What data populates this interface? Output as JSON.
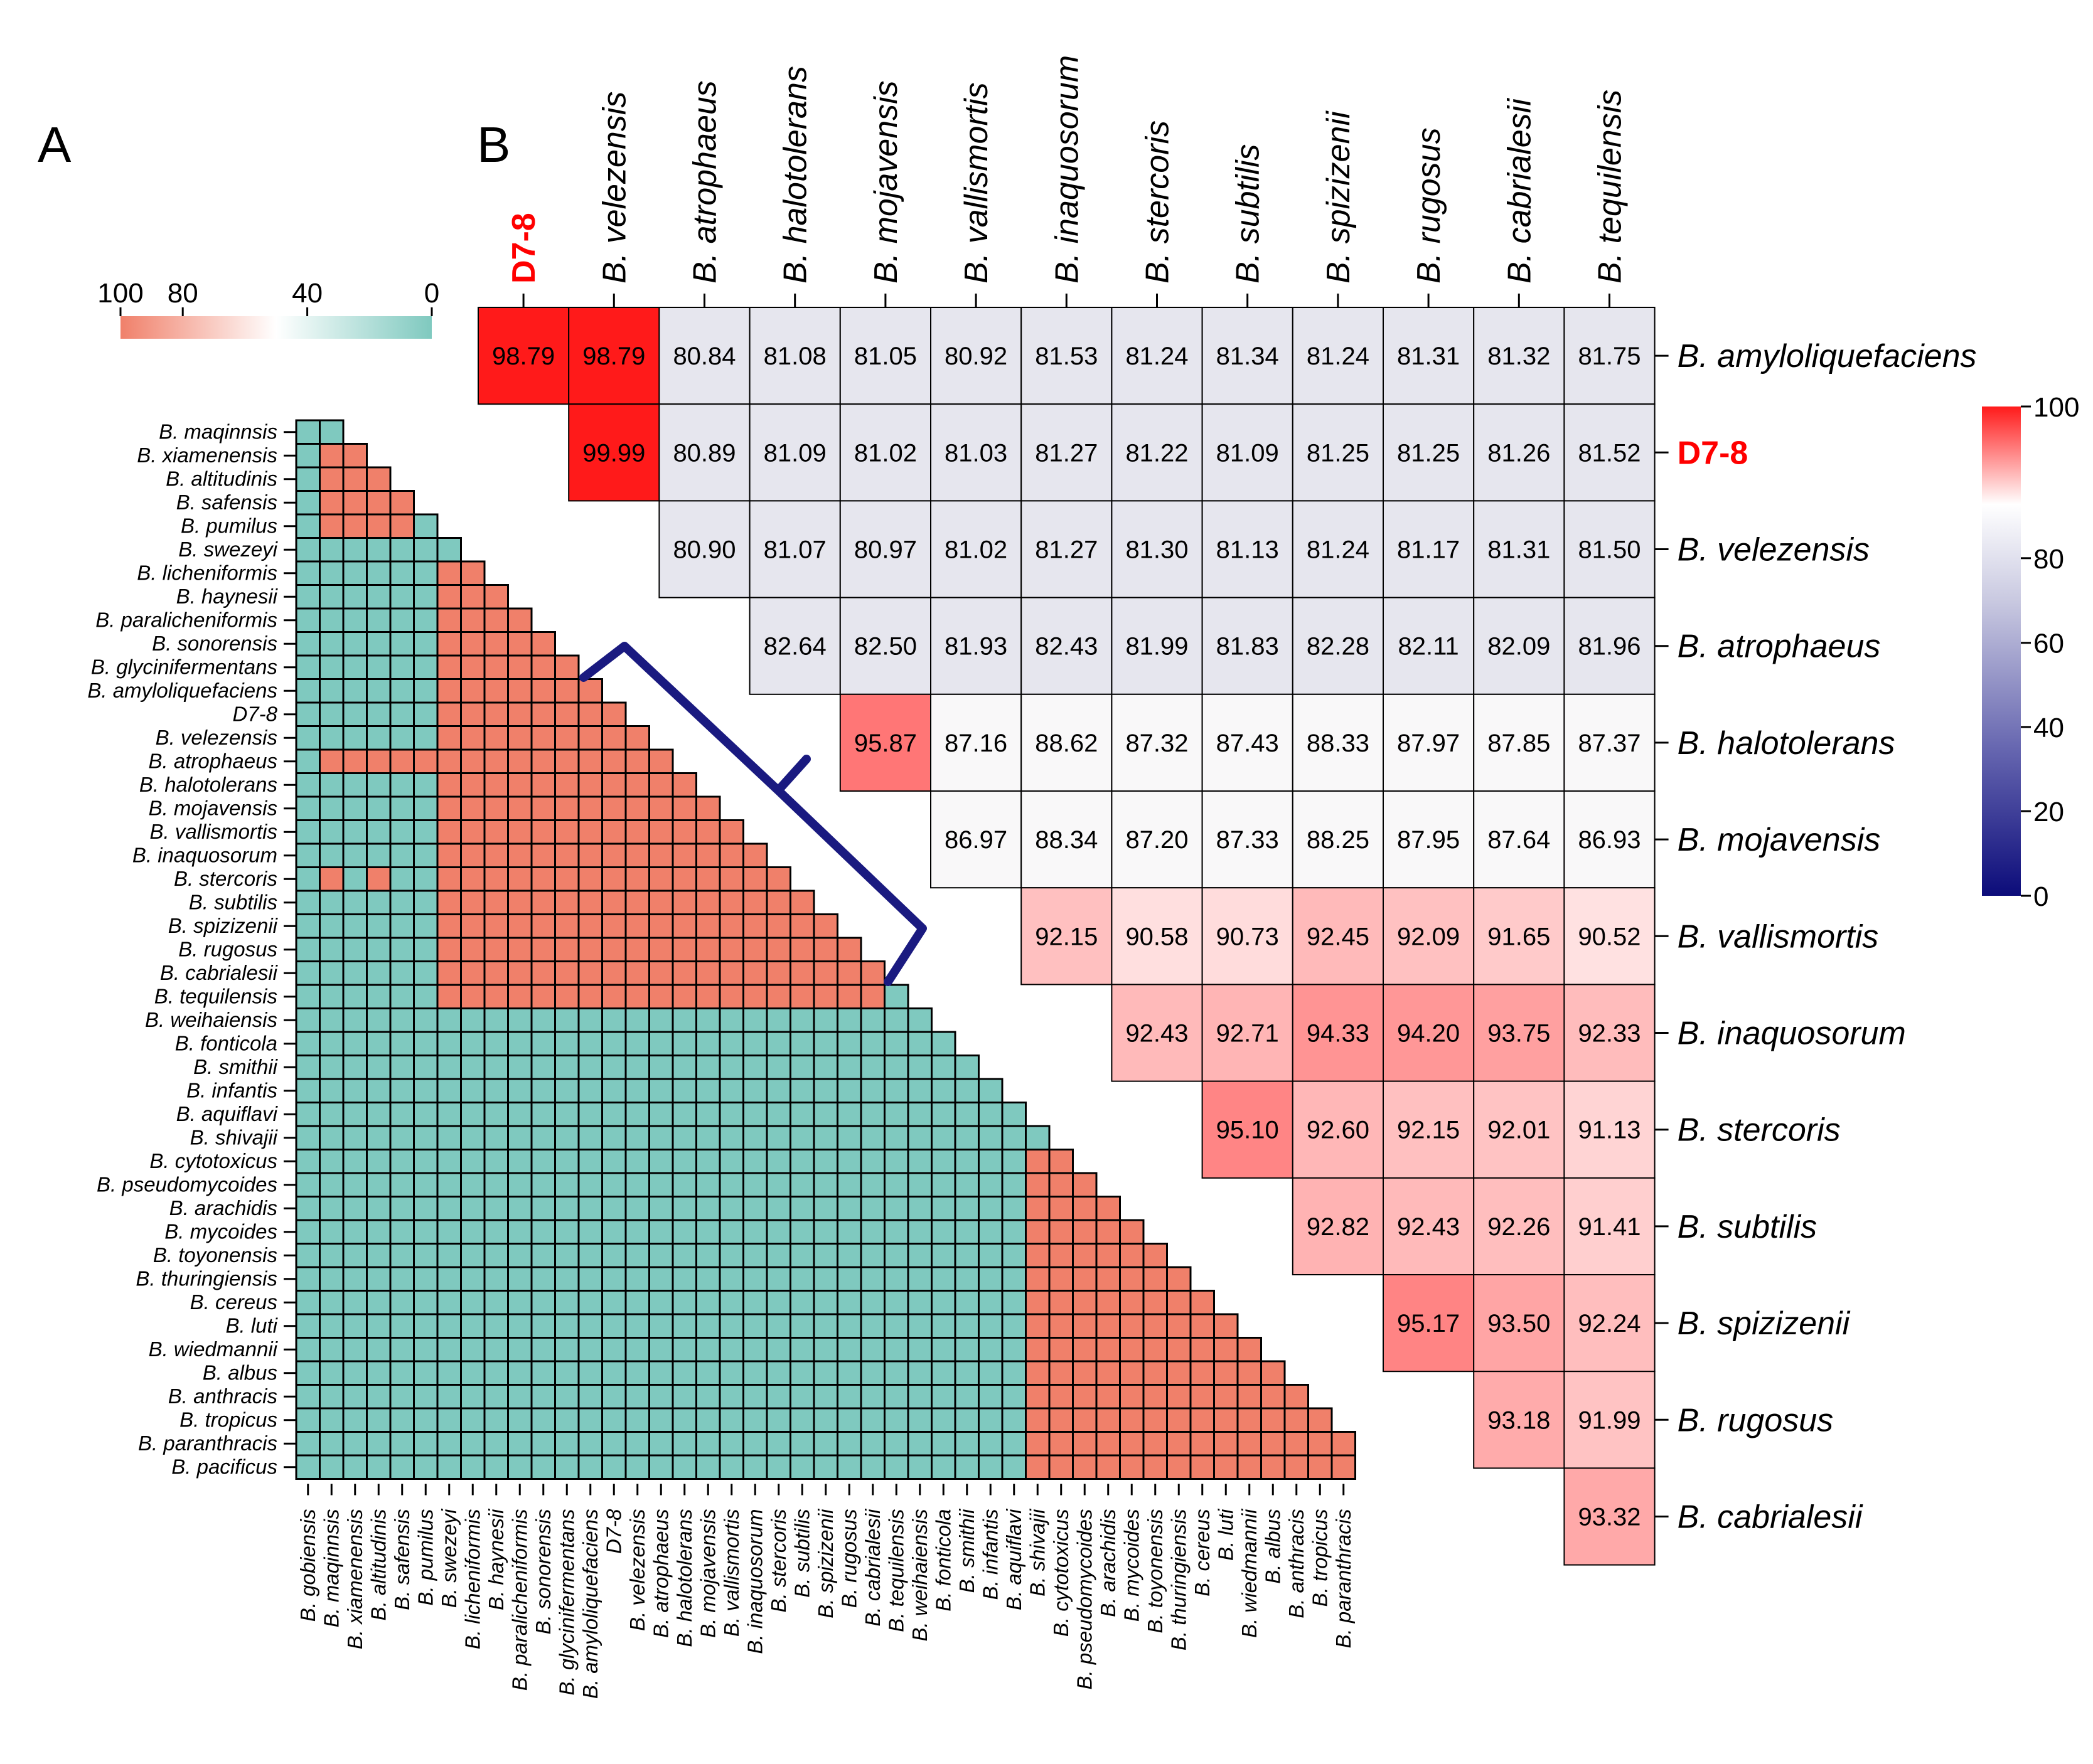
{
  "colors": {
    "teal": "#7fc9bf",
    "salmon": "#f0806a",
    "deep_red": "#ff1a1a",
    "lavender": "#e6e6ee",
    "white": "#ffffff",
    "navy": "#0c0c7a",
    "bracket": "#1a1a80",
    "highlight": "#ff0000",
    "grid": "#000000"
  },
  "panel_a": {
    "label": "A",
    "legend": {
      "ticks": [
        "100",
        "80",
        "40",
        "0"
      ],
      "tick_values": [
        100,
        80,
        40,
        0
      ]
    },
    "chart_data": {
      "type": "heatmap",
      "title": "",
      "xlabel": "",
      "ylabel": "",
      "value_scale": [
        0,
        100
      ],
      "note": "lower-triangular matrix; salmon cells are high identity groups, teal cells are low",
      "row_labels": [
        "B. maqinnsis",
        "B. xiamenensis",
        "B. altitudinis",
        "B. safensis",
        "B. pumilus",
        "B. swezeyi",
        "B. licheniformis",
        "B. haynesii",
        "B. paralicheniformis",
        "B. sonorensis",
        "B. glycinifermentans",
        "B. amyloliquefaciens",
        "D7-8",
        "B. velezensis",
        "B. atrophaeus",
        "B. halotolerans",
        "B. mojavensis",
        "B. vallismortis",
        "B. inaquosorum",
        "B. stercoris",
        "B. subtilis",
        "B. spizizenii",
        "B. rugosus",
        "B. cabrialesii",
        "B. tequilensis",
        "B. weihaiensis",
        "B. fonticola",
        "B. smithii",
        "B. infantis",
        "B. aquiflavi",
        "B. shivajii",
        "B. cytotoxicus",
        "B. pseudomycoides",
        "B. arachidis",
        "B. mycoides",
        "B. toyonensis",
        "B. thuringiensis",
        "B. cereus",
        "B. luti",
        "B. wiedmannii",
        "B. albus",
        "B. anthracis",
        "B. tropicus",
        "B. paranthracis",
        "B. pacificus"
      ],
      "col_labels": [
        "B. gobiensis",
        "B. maqinnsis",
        "B. xiamenensis",
        "B. altitudinis",
        "B. safensis",
        "B. pumilus",
        "B. swezeyi",
        "B. licheniformis",
        "B. haynesii",
        "B. paralicheniformis",
        "B. sonorensis",
        "B. glycinifermentans",
        "B. amyloliquefaciens",
        "D7-8",
        "B. velezensis",
        "B. atrophaeus",
        "B. halotolerans",
        "B. mojavensis",
        "B. vallismortis",
        "B. inaquosorum",
        "B. stercoris",
        "B. subtilis",
        "B. spizizenii",
        "B. rugosus",
        "B. cabrialesii",
        "B. tequilensis",
        "B. weihaiensis",
        "B. fonticola",
        "B. smithii",
        "B. infantis",
        "B. aquiflavi",
        "B. shivajii",
        "B. cytotoxicus",
        "B. pseudomycoides",
        "B. arachidis",
        "B. mycoides",
        "B. toyonensis",
        "B. thuringiensis",
        "B. cereus",
        "B. luti",
        "B. wiedmannii",
        "B. albus",
        "B. anthracis",
        "B. tropicus",
        "B. paranthracis"
      ],
      "high_blocks": [
        [
          1,
          4,
          1,
          4
        ],
        [
          6,
          24,
          6,
          24
        ],
        [
          31,
          44,
          31,
          44
        ]
      ],
      "extra_high_cells": [
        [
          14,
          1
        ],
        [
          14,
          2
        ],
        [
          14,
          3
        ],
        [
          14,
          4
        ],
        [
          14,
          5
        ],
        [
          19,
          1
        ],
        [
          19,
          3
        ]
      ],
      "accent_cells": [
        [
          12,
          12
        ],
        [
          13,
          13
        ]
      ]
    }
  },
  "panel_b": {
    "label": "B",
    "colorbar": {
      "ticks": [
        "100",
        "80",
        "60",
        "40",
        "20",
        "0"
      ],
      "tick_values": [
        100,
        80,
        60,
        40,
        20,
        0
      ]
    },
    "chart_data": {
      "type": "table",
      "title": "",
      "value_scale": [
        0,
        100
      ],
      "col_labels": [
        "D7-8",
        "B. velezensis",
        "B. atrophaeus",
        "B. halotolerans",
        "B. mojavensis",
        "B. vallismortis",
        "B. inaquosorum",
        "B. stercoris",
        "B. subtilis",
        "B. spizizenii",
        "B. rugosus",
        "B. cabrialesii",
        "B. tequilensis"
      ],
      "row_labels": [
        "B. amyloliquefaciens",
        "D7-8",
        "B. velezensis",
        "B. atrophaeus",
        "B. halotolerans",
        "B. mojavensis",
        "B. vallismortis",
        "B. inaquosorum",
        "B. stercoris",
        "B. subtilis",
        "B. spizizenii",
        "B. rugosus",
        "B. cabrialesii"
      ],
      "rows": [
        [
          "98.79",
          "98.79",
          "80.84",
          "81.08",
          "81.05",
          "80.92",
          "81.53",
          "81.24",
          "81.34",
          "81.24",
          "81.31",
          "81.32",
          "81.75"
        ],
        [
          "99.99",
          "80.89",
          "81.09",
          "81.02",
          "81.03",
          "81.27",
          "81.22",
          "81.09",
          "81.25",
          "81.25",
          "81.26",
          "81.52"
        ],
        [
          "80.90",
          "81.07",
          "80.97",
          "81.02",
          "81.27",
          "81.30",
          "81.13",
          "81.24",
          "81.17",
          "81.31",
          "81.50"
        ],
        [
          "82.64",
          "82.50",
          "81.93",
          "82.43",
          "81.99",
          "81.83",
          "82.28",
          "82.11",
          "82.09",
          "81.96"
        ],
        [
          "95.87",
          "87.16",
          "88.62",
          "87.32",
          "87.43",
          "88.33",
          "87.97",
          "87.85",
          "87.37"
        ],
        [
          "86.97",
          "88.34",
          "87.20",
          "87.33",
          "88.25",
          "87.95",
          "87.64",
          "86.93"
        ],
        [
          "92.15",
          "90.58",
          "90.73",
          "92.45",
          "92.09",
          "91.65",
          "90.52"
        ],
        [
          "92.43",
          "92.71",
          "94.33",
          "94.20",
          "93.75",
          "92.33"
        ],
        [
          "95.10",
          "92.60",
          "92.15",
          "92.01",
          "91.13"
        ],
        [
          "92.82",
          "92.43",
          "92.26",
          "91.41"
        ],
        [
          "95.17",
          "93.50",
          "92.24"
        ],
        [
          "93.18",
          "91.99"
        ],
        [
          "93.32"
        ]
      ]
    }
  }
}
